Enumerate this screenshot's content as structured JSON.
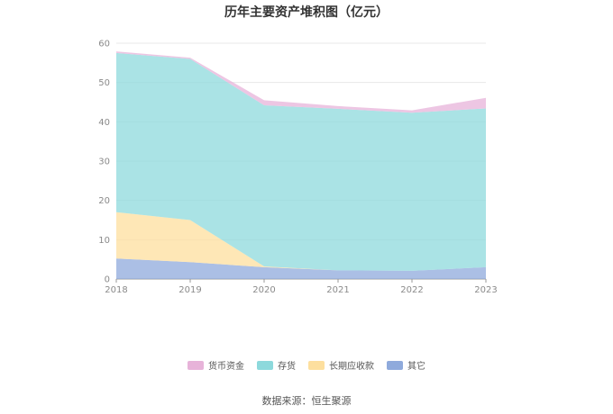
{
  "chart_data": {
    "type": "area",
    "stacked": true,
    "title": "历年主要资产堆积图（亿元）",
    "x": [
      "2018",
      "2019",
      "2020",
      "2021",
      "2022",
      "2023"
    ],
    "ylim": [
      0,
      60
    ],
    "yticks": [
      0,
      10,
      20,
      30,
      40,
      50,
      60
    ],
    "grid": true,
    "legend_position": "bottom",
    "series": [
      {
        "name": "其它",
        "color": "#8faadc",
        "values": [
          5.2,
          4.3,
          3.0,
          2.2,
          2.1,
          3.0
        ]
      },
      {
        "name": "长期应收款",
        "color": "#fddf9e",
        "values": [
          11.8,
          10.7,
          0.2,
          0.0,
          0.0,
          0.0
        ]
      },
      {
        "name": "存货",
        "color": "#8dd9dc",
        "values": [
          40.5,
          41.0,
          41.0,
          41.1,
          40.2,
          40.4
        ]
      },
      {
        "name": "货币资金",
        "color": "#e7b3d9",
        "values": [
          0.4,
          0.3,
          1.3,
          0.7,
          0.6,
          2.7
        ]
      }
    ],
    "legend_order": [
      "货币资金",
      "存货",
      "长期应收款",
      "其它"
    ]
  },
  "source_text": "数据来源：恒生聚源"
}
